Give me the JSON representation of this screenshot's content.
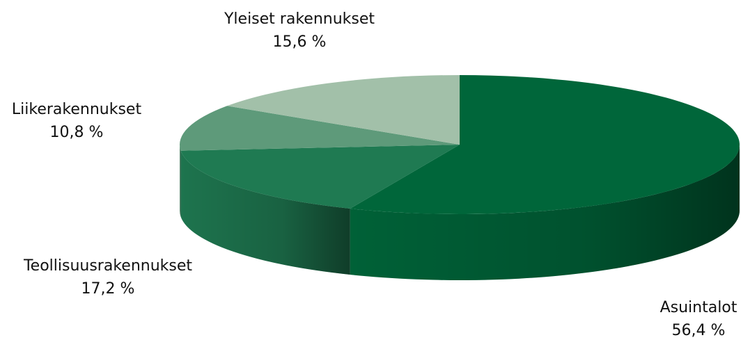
{
  "chart_data": {
    "type": "pie3d",
    "categories": [
      "Asuintalot",
      "Teollisuusrakennukset",
      "Liikerakennukset",
      "Yleiset rakennukset"
    ],
    "values": [
      56.4,
      17.2,
      10.8,
      15.6
    ],
    "value_labels": [
      "56,4 %",
      "17,2 %",
      "10,8 %",
      "15,6 %"
    ],
    "colors": [
      "#00663a",
      "#1f7a52",
      "#5e9a7a",
      "#a2c0a9"
    ]
  }
}
